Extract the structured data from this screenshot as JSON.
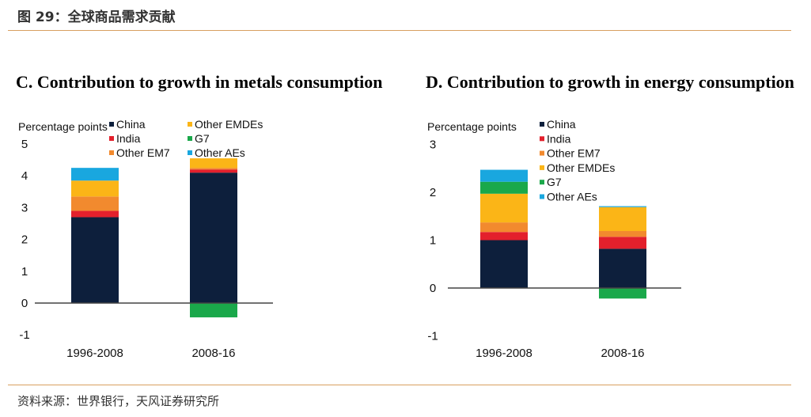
{
  "page": {
    "figure_title": "图 29：全球商品需求贡献",
    "source": "资料来源：世界银行，天风证券研究所"
  },
  "colors": {
    "China": "#0d1f3c",
    "India": "#e3202c",
    "Other EM7": "#f28a2e",
    "Other EMDEs": "#fbb517",
    "G7": "#1aa84a",
    "Other AEs": "#19a7df"
  },
  "chart_data": [
    {
      "type": "bar",
      "stacked": true,
      "title": "C. Contribution to growth in metals consumption",
      "ylabel": "Percentage points",
      "ylim": [
        -1,
        5
      ],
      "yticks": [
        5,
        4,
        3,
        2,
        1,
        0,
        -1
      ],
      "categories": [
        "1996-2008",
        "2008-16"
      ],
      "legend": [
        "China",
        "India",
        "Other EM7",
        "Other EMDEs",
        "G7",
        "Other AEs"
      ],
      "legend_columns": 2,
      "series": [
        {
          "name": "China",
          "values": [
            2.7,
            4.1
          ]
        },
        {
          "name": "India",
          "values": [
            0.2,
            0.1
          ]
        },
        {
          "name": "Other EM7",
          "values": [
            0.45,
            0.05
          ]
        },
        {
          "name": "Other EMDEs",
          "values": [
            0.5,
            0.3
          ]
        },
        {
          "name": "G7",
          "values": [
            0.0,
            -0.45
          ]
        },
        {
          "name": "Other AEs",
          "values": [
            0.4,
            0.0
          ]
        }
      ]
    },
    {
      "type": "bar",
      "stacked": true,
      "title": "D. Contribution to growth in energy consumption",
      "ylabel": "Percentage points",
      "ylim": [
        -1,
        3
      ],
      "yticks": [
        3,
        2,
        1,
        0,
        -1
      ],
      "categories": [
        "1996-2008",
        "2008-16"
      ],
      "legend": [
        "China",
        "India",
        "Other EM7",
        "Other EMDEs",
        "G7",
        "Other AEs"
      ],
      "legend_columns": 1,
      "series": [
        {
          "name": "China",
          "values": [
            1.0,
            0.82
          ]
        },
        {
          "name": "India",
          "values": [
            0.17,
            0.25
          ]
        },
        {
          "name": "Other EM7",
          "values": [
            0.2,
            0.12
          ]
        },
        {
          "name": "Other EMDEs",
          "values": [
            0.6,
            0.5
          ]
        },
        {
          "name": "G7",
          "values": [
            0.25,
            -0.22
          ]
        },
        {
          "name": "Other AEs",
          "values": [
            0.25,
            0.02
          ]
        }
      ]
    }
  ]
}
